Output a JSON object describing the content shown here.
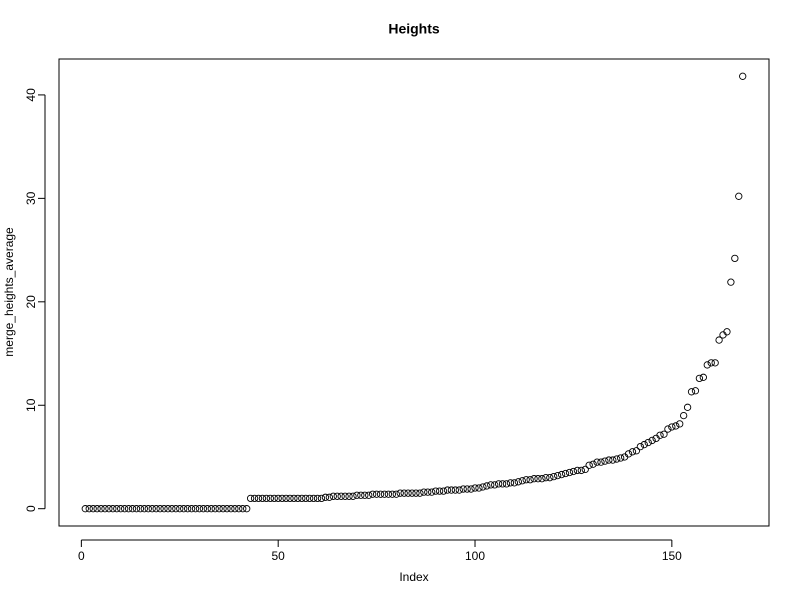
{
  "chart_data": {
    "type": "scatter",
    "title": "Heights",
    "x_label": "Index",
    "y_label": "merge_heights_average",
    "x": [
      1,
      2,
      3,
      4,
      5,
      6,
      7,
      8,
      9,
      10,
      11,
      12,
      13,
      14,
      15,
      16,
      17,
      18,
      19,
      20,
      21,
      22,
      23,
      24,
      25,
      26,
      27,
      28,
      29,
      30,
      31,
      32,
      33,
      34,
      35,
      36,
      37,
      38,
      39,
      40,
      41,
      42,
      43,
      44,
      45,
      46,
      47,
      48,
      49,
      50,
      51,
      52,
      53,
      54,
      55,
      56,
      57,
      58,
      59,
      60,
      61,
      62,
      63,
      64,
      65,
      66,
      67,
      68,
      69,
      70,
      71,
      72,
      73,
      74,
      75,
      76,
      77,
      78,
      79,
      80,
      81,
      82,
      83,
      84,
      85,
      86,
      87,
      88,
      89,
      90,
      91,
      92,
      93,
      94,
      95,
      96,
      97,
      98,
      99,
      100,
      101,
      102,
      103,
      104,
      105,
      106,
      107,
      108,
      109,
      110,
      111,
      112,
      113,
      114,
      115,
      116,
      117,
      118,
      119,
      120,
      121,
      122,
      123,
      124,
      125,
      126,
      127,
      128,
      129,
      130,
      131,
      132,
      133,
      134,
      135,
      136,
      137,
      138,
      139,
      140,
      141,
      142,
      143,
      144,
      145,
      146,
      147,
      148,
      149,
      150,
      151,
      152,
      153,
      154,
      155,
      156,
      157,
      158,
      159,
      160,
      161,
      162,
      163,
      164,
      165,
      166,
      167,
      168
    ],
    "values": [
      0,
      0,
      0,
      0,
      0,
      0,
      0,
      0,
      0,
      0,
      0,
      0,
      0,
      0,
      0,
      0,
      0,
      0,
      0,
      0,
      0,
      0,
      0,
      0,
      0,
      0,
      0,
      0,
      0,
      0,
      0,
      0,
      0,
      0,
      0,
      0,
      0,
      0,
      0,
      0,
      0,
      0,
      1.0,
      1.0,
      1.0,
      1.0,
      1.0,
      1.0,
      1.0,
      1.0,
      1.0,
      1.0,
      1.0,
      1.0,
      1.0,
      1.0,
      1.0,
      1.0,
      1.0,
      1.0,
      1.0,
      1.1,
      1.1,
      1.2,
      1.2,
      1.2,
      1.2,
      1.2,
      1.2,
      1.3,
      1.3,
      1.3,
      1.3,
      1.4,
      1.4,
      1.4,
      1.4,
      1.4,
      1.4,
      1.4,
      1.5,
      1.5,
      1.5,
      1.5,
      1.5,
      1.5,
      1.6,
      1.6,
      1.6,
      1.7,
      1.7,
      1.7,
      1.8,
      1.8,
      1.8,
      1.8,
      1.9,
      1.9,
      1.9,
      2.0,
      2.0,
      2.1,
      2.2,
      2.3,
      2.3,
      2.4,
      2.4,
      2.4,
      2.5,
      2.5,
      2.6,
      2.7,
      2.8,
      2.8,
      2.9,
      2.9,
      2.9,
      3.0,
      3.0,
      3.1,
      3.2,
      3.3,
      3.4,
      3.5,
      3.6,
      3.7,
      3.7,
      3.8,
      4.2,
      4.3,
      4.5,
      4.5,
      4.6,
      4.7,
      4.7,
      4.8,
      4.9,
      5.0,
      5.3,
      5.5,
      5.6,
      6.0,
      6.2,
      6.4,
      6.6,
      6.8,
      7.1,
      7.2,
      7.7,
      7.9,
      8.0,
      8.2,
      9.0,
      9.8,
      11.3,
      11.4,
      12.6,
      12.7,
      13.9,
      14.1,
      14.1,
      16.3,
      16.8,
      17.1,
      21.9,
      24.2,
      30.2,
      41.8
    ],
    "color": "#000000",
    "xlim": [
      -5.68,
      174.68
    ],
    "xticks": [
      0,
      50,
      100,
      150
    ],
    "ylim": [
      -1.672,
      43.472
    ],
    "yticks": [
      0,
      10,
      20,
      30,
      40
    ],
    "grid": false
  }
}
